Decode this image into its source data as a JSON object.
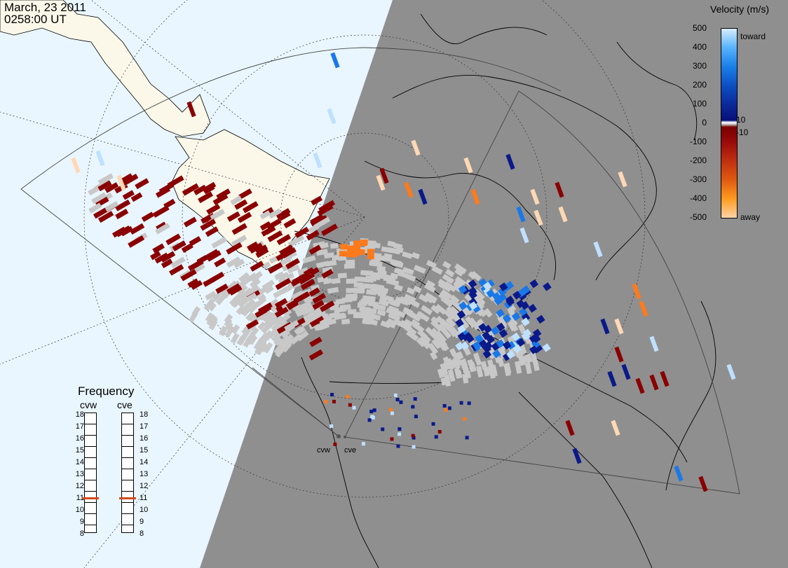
{
  "header": {
    "date": "March, 23 2011",
    "time": "0258:00 UT"
  },
  "legend": {
    "title": "Velocity (m/s)",
    "ticks": [
      "500",
      "400",
      "300",
      "200",
      "100",
      "10",
      "0",
      "-10",
      "-100",
      "-200",
      "-300",
      "-400",
      "-500"
    ],
    "toward_label": "toward",
    "away_label": "away"
  },
  "frequency": {
    "title": "Frequency",
    "radars": [
      "cvw",
      "cve"
    ],
    "scale": [
      "18",
      "17",
      "16",
      "15",
      "14",
      "13",
      "12",
      "11",
      "10",
      "9",
      "8"
    ],
    "values_mhz": [
      11,
      11
    ]
  },
  "sites": [
    "cvw",
    "cve"
  ],
  "colors": {
    "ocean": "#e9f6ff",
    "land_day": "#fbf8ea",
    "night": "#8f8f8f",
    "ground_scatter": "#c8c8c8",
    "away_strong": "#8a0000",
    "away_med": "#ff7a1a",
    "away_light": "#ffd8b5",
    "toward_strong": "#0a1a8a",
    "toward_med": "#1a78e8",
    "toward_light": "#bfe0ff"
  }
}
